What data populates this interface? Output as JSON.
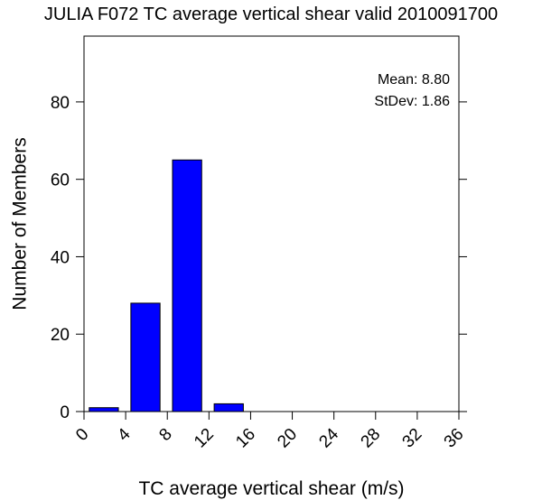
{
  "chart_data": {
    "type": "bar",
    "title": "JULIA F072 TC average vertical shear valid 2010091700",
    "xlabel": "TC average vertical shear (m/s)",
    "ylabel": "Number of Members",
    "xlim": [
      0,
      36
    ],
    "ylim": [
      0,
      97
    ],
    "x_ticks": [
      "0",
      "4",
      "8",
      "12",
      "16",
      "20",
      "24",
      "28",
      "32",
      "36"
    ],
    "y_ticks": [
      "0",
      "20",
      "40",
      "60",
      "80"
    ],
    "bars": [
      {
        "x0": 0.5,
        "x1": 3.3,
        "value": 1
      },
      {
        "x0": 4.5,
        "x1": 7.3,
        "value": 28
      },
      {
        "x0": 8.5,
        "x1": 11.3,
        "value": 65
      },
      {
        "x0": 12.5,
        "x1": 15.3,
        "value": 2
      }
    ],
    "bar_color": "#0000ff",
    "stats": {
      "mean_label": "Mean: 8.80",
      "stdev_label": "StDev: 1.86"
    },
    "grid": false
  }
}
